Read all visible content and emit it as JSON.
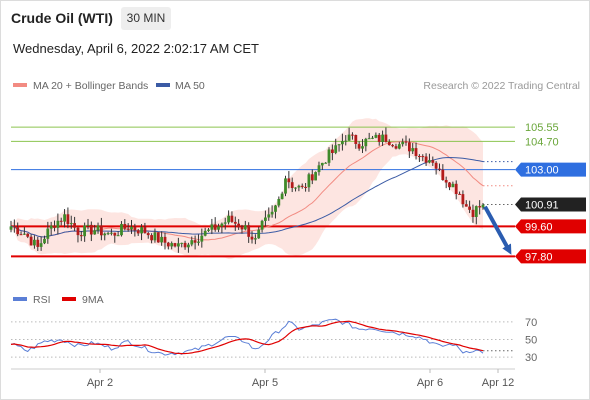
{
  "header": {
    "title": "Crude Oil (WTI)",
    "interval": "30 MIN",
    "datetime": "Wednesday, April 6, 2022 2:02:17 AM CET"
  },
  "legend": {
    "ma20": {
      "label": "MA 20 + Bollinger Bands",
      "color": "#f28b82"
    },
    "ma50": {
      "label": "MA 50",
      "color": "#3b5ba5"
    },
    "credit": "Research © 2022 Trading Central"
  },
  "rsi_legend": {
    "rsi": {
      "label": "RSI",
      "color": "#5b7fd6"
    },
    "ma9": {
      "label": "9MA",
      "color": "#e00000"
    }
  },
  "chart_data": {
    "type": "candlestick",
    "price_range": [
      96.5,
      107.3
    ],
    "levels": [
      {
        "value": "105.55",
        "kind": "resistance",
        "color": "#8cc44f"
      },
      {
        "value": "104.70",
        "kind": "resistance",
        "color": "#8cc44f"
      },
      {
        "value": "103.00",
        "kind": "pivot",
        "color": "#2f6fe0"
      },
      {
        "value": "100.91",
        "kind": "last",
        "color": "#222222"
      },
      {
        "value": "99.60",
        "kind": "support",
        "color": "#e00000"
      },
      {
        "value": "97.80",
        "kind": "support",
        "color": "#e00000"
      }
    ],
    "forecast_arrow": {
      "from": 100.9,
      "to": 97.8,
      "color": "#2a5cb0"
    },
    "x_ticks": [
      "Apr 2",
      "Apr 5",
      "Apr 6",
      "Apr 12"
    ],
    "rsi_ticks": [
      "70",
      "50",
      "30"
    ],
    "rsi_range": [
      20,
      80
    ],
    "anchors": [
      [
        0,
        99.6
      ],
      [
        4,
        99.2
      ],
      [
        8,
        98.3
      ],
      [
        10,
        99.0
      ],
      [
        13,
        99.8
      ],
      [
        16,
        100.2
      ],
      [
        20,
        99.3
      ],
      [
        25,
        99.4
      ],
      [
        30,
        99.1
      ],
      [
        35,
        99.6
      ],
      [
        40,
        99.3
      ],
      [
        45,
        98.7
      ],
      [
        50,
        98.4
      ],
      [
        55,
        98.9
      ],
      [
        60,
        99.4
      ],
      [
        65,
        100.0
      ],
      [
        70,
        99.5
      ],
      [
        73,
        98.7
      ],
      [
        75,
        99.6
      ],
      [
        78,
        100.3
      ],
      [
        80,
        101.2
      ],
      [
        82,
        102.6
      ],
      [
        84,
        102.1
      ],
      [
        87,
        101.8
      ],
      [
        90,
        102.7
      ],
      [
        94,
        103.7
      ],
      [
        97,
        104.2
      ],
      [
        100,
        105.0
      ],
      [
        104,
        104.6
      ],
      [
        108,
        104.8
      ],
      [
        112,
        104.9
      ],
      [
        116,
        104.5
      ],
      [
        120,
        104.3
      ],
      [
        123,
        103.8
      ],
      [
        126,
        103.6
      ],
      [
        128,
        102.8
      ],
      [
        131,
        102.3
      ],
      [
        134,
        101.6
      ],
      [
        136,
        100.8
      ],
      [
        138,
        100.5
      ],
      [
        141,
        100.9
      ]
    ],
    "rsi_anchors": [
      [
        0,
        45
      ],
      [
        5,
        37
      ],
      [
        10,
        48
      ],
      [
        15,
        50
      ],
      [
        20,
        43
      ],
      [
        25,
        46
      ],
      [
        30,
        40
      ],
      [
        35,
        48
      ],
      [
        40,
        40
      ],
      [
        45,
        34
      ],
      [
        50,
        35
      ],
      [
        55,
        38
      ],
      [
        60,
        45
      ],
      [
        65,
        53
      ],
      [
        70,
        48
      ],
      [
        73,
        38
      ],
      [
        76,
        47
      ],
      [
        80,
        60
      ],
      [
        83,
        69
      ],
      [
        86,
        62
      ],
      [
        90,
        65
      ],
      [
        94,
        70
      ],
      [
        97,
        72
      ],
      [
        100,
        68
      ],
      [
        104,
        62
      ],
      [
        108,
        63
      ],
      [
        112,
        60
      ],
      [
        116,
        57
      ],
      [
        120,
        55
      ],
      [
        124,
        50
      ],
      [
        128,
        42
      ],
      [
        132,
        45
      ],
      [
        135,
        36
      ],
      [
        138,
        38
      ],
      [
        141,
        36
      ]
    ]
  }
}
